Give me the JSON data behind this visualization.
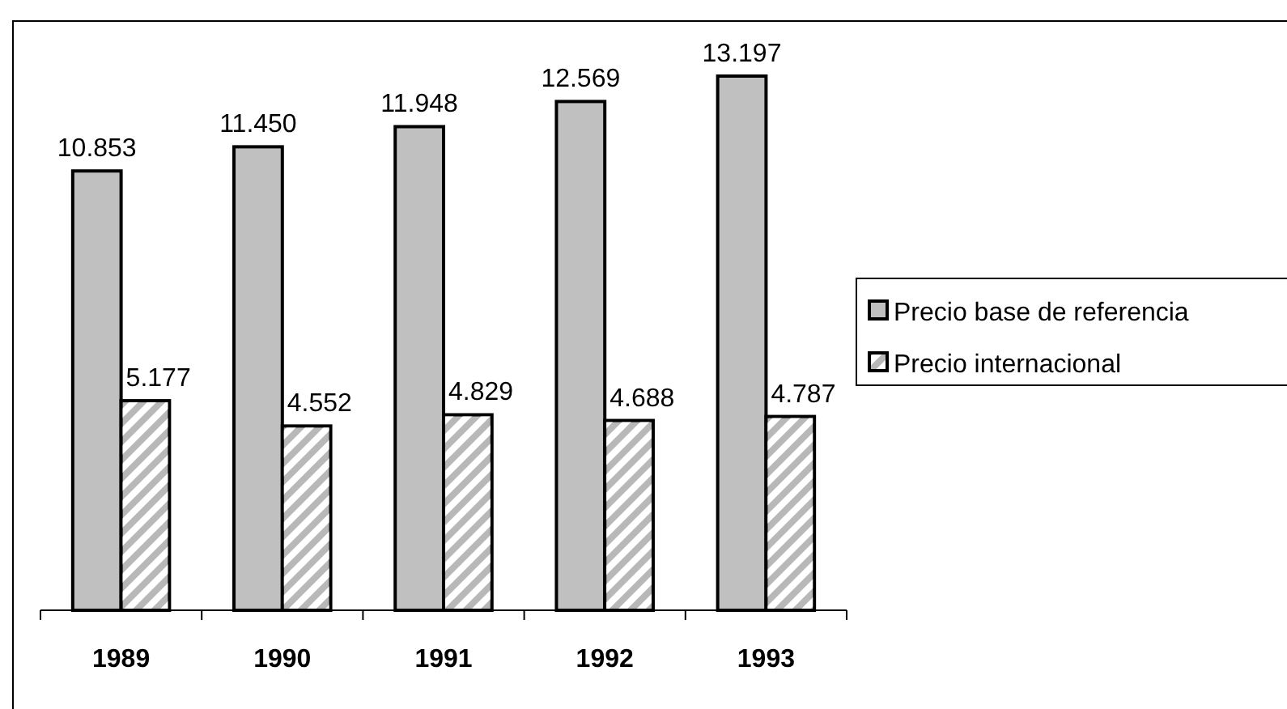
{
  "chart_data": {
    "type": "bar",
    "categories": [
      "1989",
      "1990",
      "1991",
      "1992",
      "1993"
    ],
    "series": [
      {
        "name": "Precio base de referencia",
        "color": "#c0c0c0",
        "values": [
          10853,
          11450,
          11948,
          12569,
          13197
        ],
        "value_labels": [
          "10.853",
          "11.450",
          "11.948",
          "12.569",
          "13.197"
        ]
      },
      {
        "name": "Precio internacional",
        "color": "#b8b8b8",
        "values": [
          5177,
          4552,
          4829,
          4688,
          4787
        ],
        "value_labels": [
          "5.177",
          "4.552",
          "4.829",
          "4.688",
          "4.787"
        ]
      }
    ],
    "tick_labels": "x",
    "legend": "right",
    "grid": false
  }
}
